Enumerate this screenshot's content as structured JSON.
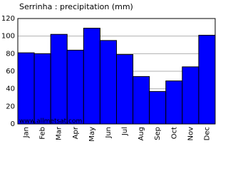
{
  "chart_data": {
    "type": "bar",
    "title": "Serrinha : precipitation (mm)",
    "categories": [
      "Jan",
      "Feb",
      "Mar",
      "Apr",
      "May",
      "Jun",
      "Jul",
      "Aug",
      "Sep",
      "Oct",
      "Nov",
      "Dec"
    ],
    "values": [
      81,
      80,
      102,
      84,
      109,
      95,
      79,
      54,
      37,
      49,
      65,
      101
    ],
    "color": "#0000ff",
    "ylim": [
      0,
      120
    ],
    "yticks": [
      0,
      20,
      40,
      60,
      80,
      100,
      120
    ],
    "grid": true,
    "watermark": "www.allmetsat.com"
  }
}
